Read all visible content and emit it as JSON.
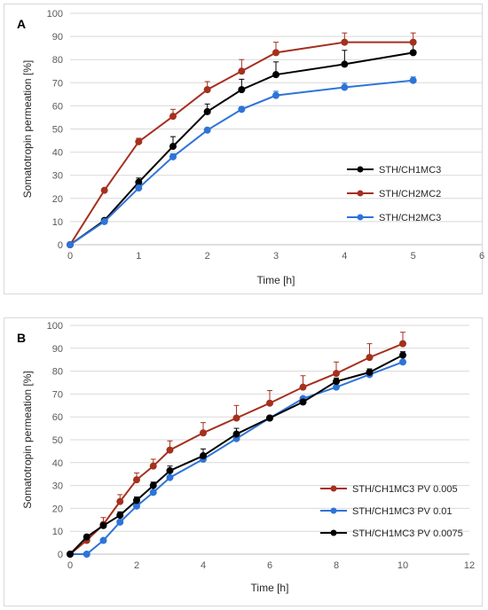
{
  "chart_data": [
    {
      "panel_label": "A",
      "type": "line",
      "xlabel": "Time [h]",
      "ylabel": "Somatotropin permeation [%]",
      "xlim": [
        0,
        6
      ],
      "ylim": [
        0,
        100
      ],
      "xticks": [
        0,
        1,
        2,
        3,
        4,
        5,
        6
      ],
      "yticks": [
        0,
        10,
        20,
        30,
        40,
        50,
        60,
        70,
        80,
        90,
        100
      ],
      "grid": "horizontal",
      "legend_position": "right",
      "x": [
        0,
        0.5,
        1,
        1.5,
        2,
        2.5,
        3,
        4,
        5
      ],
      "series": [
        {
          "name": "STH/CH1MC3",
          "color": "#000000",
          "values": [
            0,
            10.5,
            27,
            42.5,
            57.5,
            67,
            73.5,
            78,
            83
          ],
          "errors": [
            0,
            0.8,
            1.8,
            4.2,
            3.3,
            4.5,
            5.5,
            6,
            4
          ]
        },
        {
          "name": "STH/CH2MC2",
          "color": "#a5301e",
          "values": [
            0,
            23.5,
            44.5,
            55.5,
            67,
            75,
            83,
            87.5,
            87.5
          ],
          "errors": [
            0,
            0.8,
            1.5,
            3,
            3.5,
            5,
            4.5,
            4,
            4
          ]
        },
        {
          "name": "STH/CH2MC3",
          "color": "#2e74d8",
          "values": [
            0,
            10,
            24.5,
            38,
            49.5,
            58.5,
            64.5,
            68,
            71
          ],
          "errors": [
            0,
            0.5,
            1,
            1.3,
            1,
            1,
            1.8,
            1.8,
            1.5
          ]
        }
      ]
    },
    {
      "panel_label": "B",
      "type": "line",
      "xlabel": "Time [h]",
      "ylabel": "Somatotropin permeation [%]",
      "xlim": [
        0,
        12
      ],
      "ylim": [
        0,
        100
      ],
      "xticks": [
        0,
        2,
        4,
        6,
        8,
        10,
        12
      ],
      "yticks": [
        0,
        10,
        20,
        30,
        40,
        50,
        60,
        70,
        80,
        90,
        100
      ],
      "grid": "horizontal",
      "legend_position": "bottom-right",
      "x": [
        0,
        0.5,
        1,
        1.5,
        2,
        2.5,
        3,
        4,
        5,
        6,
        7,
        8,
        9,
        10
      ],
      "series": [
        {
          "name": "STH/CH1MC3 PV 0.005",
          "color": "#a5301e",
          "values": [
            0,
            6,
            13,
            23,
            32.5,
            38.5,
            45.5,
            53,
            59.5,
            66,
            73,
            79,
            86,
            92
          ],
          "errors": [
            0,
            1.5,
            3,
            3,
            3,
            3,
            4,
            4.5,
            5.5,
            5.5,
            5,
            5,
            6,
            5
          ]
        },
        {
          "name": "STH/CH1MC3 PV 0.01",
          "color": "#2e74d8",
          "values": [
            0,
            0,
            6,
            14,
            21,
            27,
            33.5,
            41.5,
            50.5,
            59.5,
            68,
            73,
            78.5,
            84
          ],
          "errors": [
            0,
            0,
            0.5,
            0.5,
            0.5,
            0.5,
            0.5,
            0.5,
            0.5,
            0.5,
            0.5,
            0.5,
            0.5,
            0.5
          ]
        },
        {
          "name": "STH/CH1MC3 PV 0.0075",
          "color": "#000000",
          "values": [
            0,
            7.5,
            12.5,
            17,
            23.5,
            30,
            36.5,
            43,
            52.5,
            59.5,
            66.5,
            75.5,
            79.5,
            87
          ],
          "errors": [
            0,
            1,
            1,
            1.5,
            1.5,
            1.5,
            2,
            3,
            2.5,
            1,
            1,
            1.5,
            1.5,
            1.5
          ]
        }
      ]
    }
  ]
}
